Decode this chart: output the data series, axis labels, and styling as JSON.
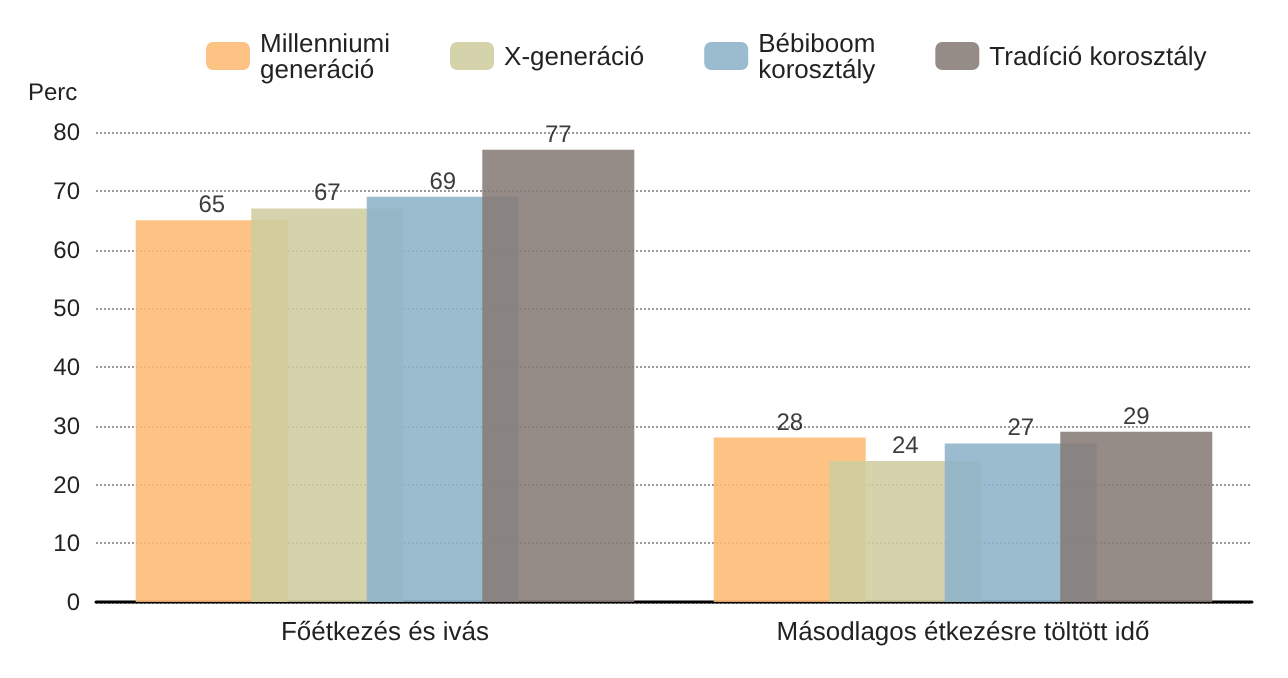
{
  "chart_data": {
    "type": "bar",
    "ylabel": "Perc",
    "categories": [
      "Főétkezés és ivás",
      "Másodlagos étkezésre töltött idő"
    ],
    "series": [
      {
        "name": "Millenniumi\ngeneráció",
        "color": "#fdbb74",
        "values": [
          65,
          28
        ]
      },
      {
        "name": "X-generáció",
        "color": "#cfcd9f",
        "values": [
          67,
          24
        ]
      },
      {
        "name": "Bébiboom\nkorosztály",
        "color": "#8db3c8",
        "values": [
          69,
          27
        ]
      },
      {
        "name": "Tradíció korosztály",
        "color": "#867b76",
        "values": [
          77,
          29
        ]
      }
    ],
    "ylim": [
      0,
      80
    ],
    "yticks": [
      0,
      10,
      20,
      30,
      40,
      50,
      60,
      70,
      80
    ],
    "grid": "y",
    "legend": "top",
    "data_labels": true
  }
}
